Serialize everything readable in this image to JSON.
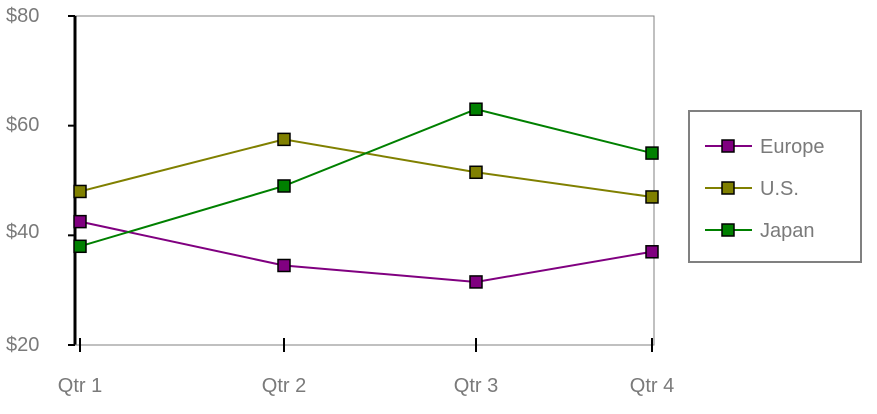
{
  "chart_data": {
    "type": "line",
    "title": "",
    "xlabel": "",
    "ylabel": "",
    "categories": [
      "Qtr 1",
      "Qtr 2",
      "Qtr 3",
      "Qtr 4"
    ],
    "ylim": [
      20,
      80
    ],
    "yticks": [
      20,
      40,
      60,
      80
    ],
    "ytick_labels": [
      "$20",
      "$40",
      "$60",
      "$80"
    ],
    "series": [
      {
        "name": "Europe",
        "values": [
          42.5,
          34.5,
          31.5,
          37
        ],
        "color": "#800080"
      },
      {
        "name": "U.S.",
        "values": [
          48,
          57.5,
          51.5,
          47
        ],
        "color": "#808000"
      },
      {
        "name": "Japan",
        "values": [
          38,
          49,
          63,
          55
        ],
        "color": "#008000"
      }
    ],
    "grid": false,
    "legend": {
      "position": "right",
      "order": [
        "Europe",
        "U.S.",
        "Japan"
      ]
    }
  }
}
